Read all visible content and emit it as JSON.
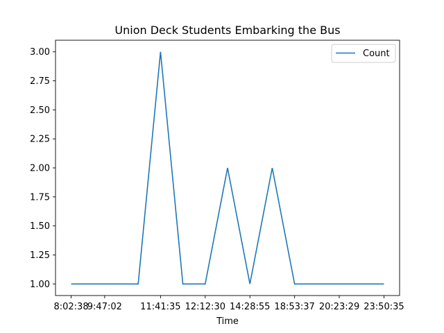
{
  "chart_data": {
    "type": "line",
    "title": "Union Deck Students Embarking the Bus",
    "xlabel": "Time",
    "ylabel": "",
    "x_tick_labels": [
      "8:02:38",
      "9:47:02",
      "11:41:35",
      "12:12:30",
      "14:28:55",
      "18:53:37",
      "20:23:29",
      "23:50:35"
    ],
    "x_tick_positions": [
      0,
      1.5,
      4,
      6,
      8,
      10,
      12,
      14
    ],
    "y_ticks": [
      1.0,
      1.25,
      1.5,
      1.75,
      2.0,
      2.25,
      2.5,
      2.75,
      3.0
    ],
    "y_tick_labels": [
      "1.00",
      "1.25",
      "1.50",
      "1.75",
      "2.00",
      "2.25",
      "2.50",
      "2.75",
      "3.00"
    ],
    "ylim": [
      0.9,
      3.1
    ],
    "xlim": [
      -0.7,
      14.7
    ],
    "x": [
      0,
      1,
      2,
      3,
      4,
      5,
      6,
      7,
      8,
      9,
      10,
      11,
      12,
      13,
      14
    ],
    "series": [
      {
        "name": "Count",
        "color": "#1f77b4",
        "values": [
          1,
          1,
          1,
          1,
          3,
          1,
          1,
          2,
          1,
          2,
          1,
          1,
          1,
          1,
          1
        ]
      }
    ],
    "legend": "top-right",
    "grid": false
  }
}
